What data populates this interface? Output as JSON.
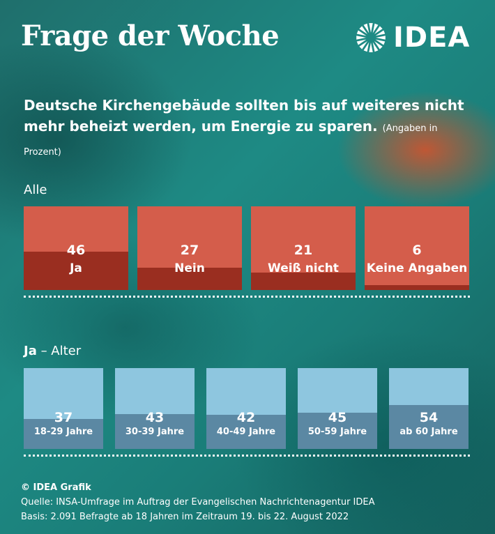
{
  "header": {
    "title": "Frage der Woche",
    "logo_text": "IDEA"
  },
  "question": {
    "text": "Deutsche Kirchengebäude sollten bis auf weiteres nicht mehr beheizt werden, um Energie zu sparen.",
    "note": "(Angaben in Prozent)"
  },
  "chart_data": [
    {
      "type": "bar",
      "title": "Alle",
      "categories": [
        "Ja",
        "Nein",
        "Weiß nicht",
        "Keine Angaben"
      ],
      "values": [
        46,
        27,
        21,
        6
      ],
      "ylim": [
        0,
        100
      ],
      "colors": {
        "fill": "#9a2e20",
        "background": "#d45d4b"
      }
    },
    {
      "type": "bar",
      "title_bold": "Ja",
      "title_rest": " – Alter",
      "categories": [
        "18-29 Jahre",
        "30-39 Jahre",
        "40-49 Jahre",
        "50-59 Jahre",
        "ab 60 Jahre"
      ],
      "values": [
        37,
        43,
        42,
        45,
        54
      ],
      "ylim": [
        0,
        100
      ],
      "colors": {
        "fill": "#5b88a3",
        "background": "#8ec6df"
      }
    }
  ],
  "footer": {
    "credit": "© IDEA Grafik",
    "source": "Quelle: INSA-Umfrage im Auftrag der Evangelischen Nachrichtenagentur IDEA",
    "basis": "Basis: 2.091 Befragte ab 18 Jahren im Zeitraum 19. bis 22. August 2022"
  }
}
